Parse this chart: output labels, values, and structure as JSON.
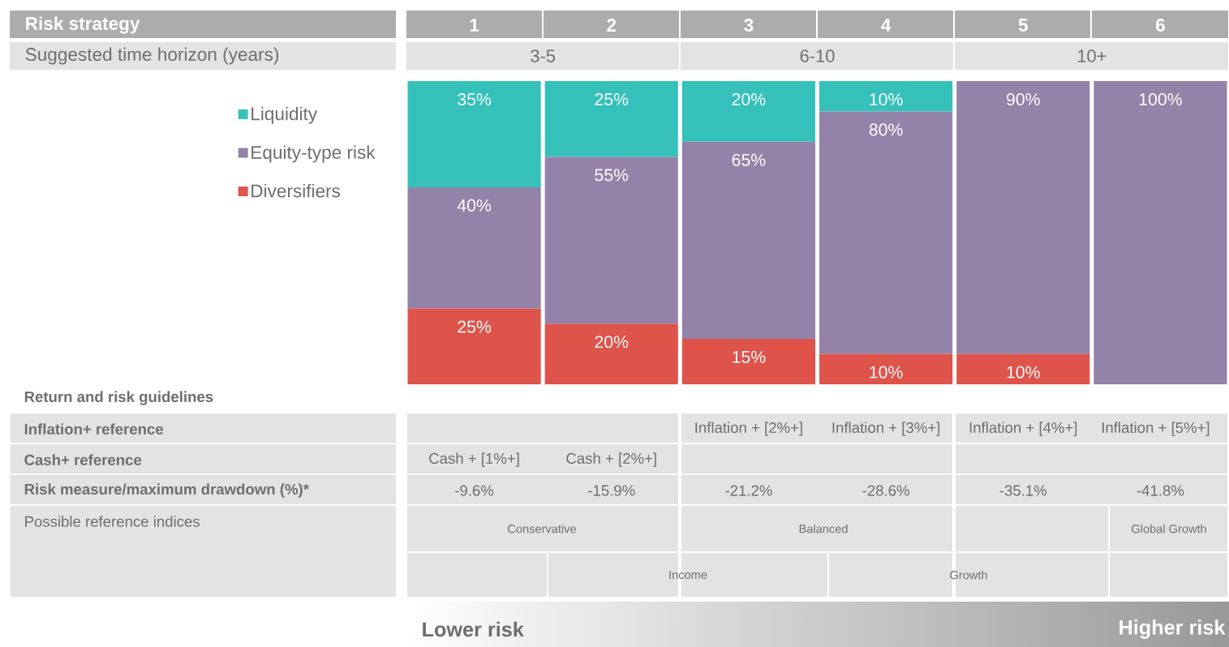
{
  "chart_data": {
    "type": "bar",
    "stacked": true,
    "title": "Risk strategy",
    "subtitle": "Suggested time horizon (years)",
    "categories": [
      "1",
      "2",
      "3",
      "4",
      "5",
      "6"
    ],
    "ylim": [
      0,
      100
    ],
    "legend": "left",
    "series": [
      {
        "name": "Diversifiers",
        "color": "#de544b",
        "values": [
          25,
          20,
          15,
          10,
          10,
          null
        ],
        "value_labels": [
          "25%",
          "20%",
          "15%",
          "10%",
          "10%",
          null
        ]
      },
      {
        "name": "Equity-type risk",
        "color": "#9483a8",
        "values": [
          40,
          55,
          65,
          80,
          90,
          100
        ],
        "value_labels": [
          "40%",
          "55%",
          "65%",
          "80%",
          "90%",
          "100%"
        ]
      },
      {
        "name": "Liquidity",
        "color": "#35c1b9",
        "values": [
          35,
          25,
          20,
          10,
          null,
          null
        ],
        "value_labels": [
          "35%",
          "25%",
          "20%",
          "10%",
          null,
          null
        ]
      }
    ],
    "annotations": [
      "3-5",
      "6-10",
      "10+",
      "Return and risk guidelines",
      "Inflation+ reference",
      "Cash+ reference",
      "Risk measure/maximum drawdown (%)*",
      "Possible reference indices",
      "Inflation + [2%+]",
      "Inflation + [3%+]",
      "Inflation + [4%+]",
      "Inflation + [5%+]",
      "Cash + [1%+]",
      "Cash + [2%+]",
      "-9.6%",
      "-15.9%",
      "-21.2%",
      "-28.6%",
      "-35.1%",
      "-41.8%",
      "Conservative",
      "Balanced",
      "Global Growth",
      "Income",
      "Growth",
      "Lower risk",
      "Higher risk"
    ]
  }
}
